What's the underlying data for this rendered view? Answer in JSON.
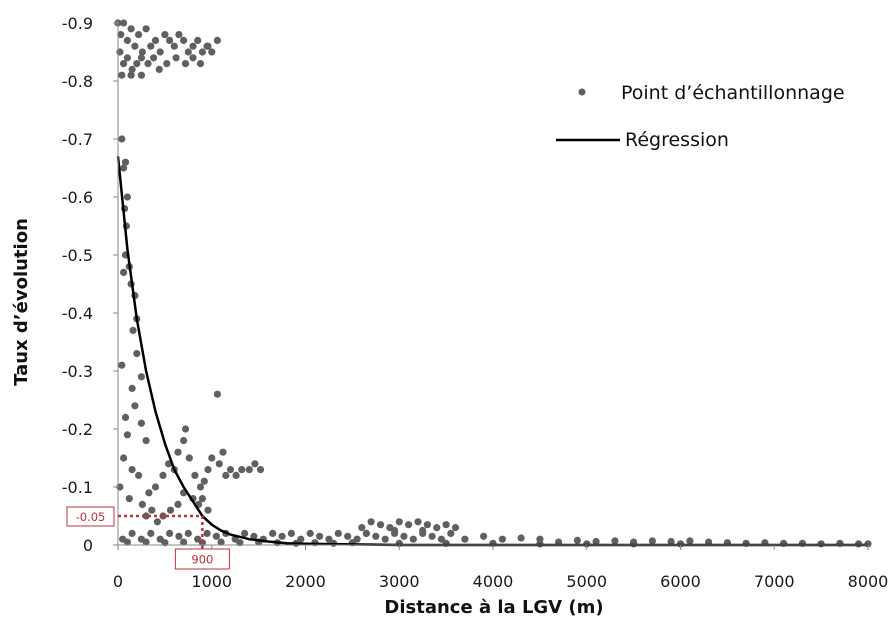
{
  "chart_data": {
    "type": "scatter",
    "xlabel": "Distance à la LGV (m)",
    "ylabel": "Taux d’évolution",
    "xlim": [
      0,
      8000
    ],
    "ylim": [
      -0.9,
      0
    ],
    "y_axis_inverted": true,
    "x_ticks": [
      0,
      1000,
      2000,
      3000,
      4000,
      5000,
      6000,
      7000,
      8000
    ],
    "y_ticks": [
      0,
      -0.1,
      -0.2,
      -0.3,
      -0.4,
      -0.5,
      -0.6,
      -0.7,
      -0.8,
      -0.9
    ],
    "x_tick_labels": [
      "0",
      "1000",
      "2000",
      "3000",
      "4000",
      "5000",
      "6000",
      "7000",
      "8000"
    ],
    "y_tick_labels": [
      "0",
      "-0.1",
      "-0.2",
      "-0.3",
      "-0.4",
      "-0.5",
      "-0.6",
      "-0.7",
      "-0.8",
      "-0.9"
    ],
    "grid": false,
    "legend_position": "top-right",
    "colors": {
      "points": "#606060",
      "regression": "#000000",
      "annotation": "#c0303a"
    },
    "series": [
      {
        "name": "Point d’échantillonnage",
        "kind": "scatter",
        "points": [
          [
            0,
            -0.9
          ],
          [
            30,
            -0.88
          ],
          [
            60,
            -0.9
          ],
          [
            100,
            -0.87
          ],
          [
            140,
            -0.89
          ],
          [
            180,
            -0.86
          ],
          [
            220,
            -0.88
          ],
          [
            260,
            -0.85
          ],
          [
            300,
            -0.89
          ],
          [
            350,
            -0.86
          ],
          [
            400,
            -0.87
          ],
          [
            450,
            -0.85
          ],
          [
            500,
            -0.88
          ],
          [
            550,
            -0.87
          ],
          [
            600,
            -0.86
          ],
          [
            650,
            -0.88
          ],
          [
            700,
            -0.87
          ],
          [
            750,
            -0.85
          ],
          [
            800,
            -0.86
          ],
          [
            850,
            -0.87
          ],
          [
            900,
            -0.85
          ],
          [
            950,
            -0.86
          ],
          [
            1000,
            -0.85
          ],
          [
            1060,
            -0.87
          ],
          [
            20,
            -0.85
          ],
          [
            60,
            -0.83
          ],
          [
            100,
            -0.84
          ],
          [
            150,
            -0.82
          ],
          [
            200,
            -0.83
          ],
          [
            250,
            -0.84
          ],
          [
            320,
            -0.83
          ],
          [
            380,
            -0.84
          ],
          [
            440,
            -0.82
          ],
          [
            520,
            -0.83
          ],
          [
            620,
            -0.84
          ],
          [
            720,
            -0.83
          ],
          [
            800,
            -0.84
          ],
          [
            880,
            -0.83
          ],
          [
            960,
            -0.86
          ],
          [
            40,
            -0.81
          ],
          [
            140,
            -0.81
          ],
          [
            250,
            -0.81
          ],
          [
            40,
            -0.7
          ],
          [
            60,
            -0.65
          ],
          [
            80,
            -0.66
          ],
          [
            100,
            -0.6
          ],
          [
            70,
            -0.58
          ],
          [
            90,
            -0.55
          ],
          [
            80,
            -0.5
          ],
          [
            60,
            -0.47
          ],
          [
            120,
            -0.48
          ],
          [
            140,
            -0.45
          ],
          [
            180,
            -0.43
          ],
          [
            200,
            -0.39
          ],
          [
            160,
            -0.37
          ],
          [
            40,
            -0.31
          ],
          [
            200,
            -0.33
          ],
          [
            150,
            -0.27
          ],
          [
            250,
            -0.29
          ],
          [
            80,
            -0.22
          ],
          [
            180,
            -0.24
          ],
          [
            250,
            -0.21
          ],
          [
            100,
            -0.19
          ],
          [
            300,
            -0.18
          ],
          [
            60,
            -0.15
          ],
          [
            150,
            -0.13
          ],
          [
            220,
            -0.12
          ],
          [
            20,
            -0.1
          ],
          [
            120,
            -0.08
          ],
          [
            260,
            -0.07
          ],
          [
            330,
            -0.09
          ],
          [
            400,
            -0.1
          ],
          [
            480,
            -0.12
          ],
          [
            540,
            -0.14
          ],
          [
            600,
            -0.13
          ],
          [
            640,
            -0.16
          ],
          [
            700,
            -0.18
          ],
          [
            720,
            -0.2
          ],
          [
            760,
            -0.15
          ],
          [
            820,
            -0.12
          ],
          [
            880,
            -0.1
          ],
          [
            920,
            -0.11
          ],
          [
            960,
            -0.13
          ],
          [
            1000,
            -0.15
          ],
          [
            1060,
            -0.26
          ],
          [
            1080,
            -0.14
          ],
          [
            1120,
            -0.16
          ],
          [
            1150,
            -0.12
          ],
          [
            1200,
            -0.13
          ],
          [
            1260,
            -0.12
          ],
          [
            1320,
            -0.13
          ],
          [
            1400,
            -0.13
          ],
          [
            1460,
            -0.14
          ],
          [
            1520,
            -0.13
          ],
          [
            800,
            -0.08
          ],
          [
            860,
            -0.07
          ],
          [
            900,
            -0.08
          ],
          [
            960,
            -0.06
          ],
          [
            700,
            -0.09
          ],
          [
            640,
            -0.07
          ],
          [
            560,
            -0.06
          ],
          [
            480,
            -0.05
          ],
          [
            420,
            -0.04
          ],
          [
            360,
            -0.06
          ],
          [
            300,
            -0.05
          ],
          [
            50,
            -0.01
          ],
          [
            150,
            -0.02
          ],
          [
            250,
            -0.01
          ],
          [
            350,
            -0.02
          ],
          [
            450,
            -0.01
          ],
          [
            550,
            -0.02
          ],
          [
            650,
            -0.015
          ],
          [
            750,
            -0.02
          ],
          [
            850,
            -0.01
          ],
          [
            950,
            -0.02
          ],
          [
            1050,
            -0.015
          ],
          [
            1150,
            -0.02
          ],
          [
            1250,
            -0.01
          ],
          [
            1350,
            -0.02
          ],
          [
            1450,
            -0.015
          ],
          [
            1550,
            -0.01
          ],
          [
            1650,
            -0.02
          ],
          [
            1750,
            -0.015
          ],
          [
            1850,
            -0.02
          ],
          [
            1950,
            -0.01
          ],
          [
            2050,
            -0.02
          ],
          [
            2150,
            -0.015
          ],
          [
            2250,
            -0.01
          ],
          [
            2350,
            -0.02
          ],
          [
            2450,
            -0.015
          ],
          [
            2550,
            -0.01
          ],
          [
            2650,
            -0.02
          ],
          [
            2750,
            -0.015
          ],
          [
            2850,
            -0.01
          ],
          [
            2950,
            -0.02
          ],
          [
            3050,
            -0.015
          ],
          [
            3150,
            -0.01
          ],
          [
            3250,
            -0.02
          ],
          [
            3350,
            -0.015
          ],
          [
            3450,
            -0.01
          ],
          [
            3550,
            -0.02
          ],
          [
            2600,
            -0.03
          ],
          [
            2700,
            -0.04
          ],
          [
            2800,
            -0.035
          ],
          [
            2900,
            -0.03
          ],
          [
            3000,
            -0.04
          ],
          [
            3100,
            -0.035
          ],
          [
            3200,
            -0.04
          ],
          [
            3300,
            -0.035
          ],
          [
            3400,
            -0.03
          ],
          [
            3500,
            -0.035
          ],
          [
            3600,
            -0.03
          ],
          [
            2650,
            -0.02
          ],
          [
            2950,
            -0.025
          ],
          [
            3250,
            -0.025
          ],
          [
            3700,
            -0.01
          ],
          [
            3900,
            -0.015
          ],
          [
            4100,
            -0.01
          ],
          [
            4300,
            -0.012
          ],
          [
            4500,
            -0.01
          ],
          [
            4700,
            -0.005
          ],
          [
            4900,
            -0.008
          ],
          [
            5100,
            -0.006
          ],
          [
            5300,
            -0.007
          ],
          [
            5500,
            -0.005
          ],
          [
            5700,
            -0.007
          ],
          [
            5900,
            -0.006
          ],
          [
            6100,
            -0.007
          ],
          [
            6300,
            -0.005
          ],
          [
            6500,
            -0.004
          ],
          [
            6700,
            -0.003
          ],
          [
            6900,
            -0.004
          ],
          [
            7100,
            -0.003
          ],
          [
            7300,
            -0.003
          ],
          [
            7500,
            -0.002
          ],
          [
            7700,
            -0.003
          ],
          [
            7900,
            -0.002
          ],
          [
            8000,
            -0.002
          ],
          [
            100,
            -0.005
          ],
          [
            300,
            -0.005
          ],
          [
            500,
            -0.004
          ],
          [
            700,
            -0.005
          ],
          [
            900,
            -0.004
          ],
          [
            1100,
            -0.005
          ],
          [
            1300,
            -0.004
          ],
          [
            1500,
            -0.005
          ],
          [
            1700,
            -0.004
          ],
          [
            1900,
            -0.003
          ],
          [
            2100,
            -0.004
          ],
          [
            2300,
            -0.003
          ],
          [
            2500,
            -0.004
          ],
          [
            3000,
            -0.003
          ],
          [
            3500,
            -0.003
          ],
          [
            4000,
            -0.003
          ],
          [
            4500,
            -0.002
          ],
          [
            5000,
            -0.002
          ],
          [
            5500,
            -0.002
          ],
          [
            6000,
            -0.002
          ]
        ]
      },
      {
        "name": "Régression",
        "kind": "line",
        "points": [
          [
            0,
            -0.67
          ],
          [
            100,
            -0.51
          ],
          [
            200,
            -0.39
          ],
          [
            300,
            -0.3
          ],
          [
            400,
            -0.23
          ],
          [
            500,
            -0.175
          ],
          [
            600,
            -0.13
          ],
          [
            700,
            -0.1
          ],
          [
            800,
            -0.075
          ],
          [
            900,
            -0.05
          ],
          [
            1000,
            -0.035
          ],
          [
            1100,
            -0.025
          ],
          [
            1200,
            -0.018
          ],
          [
            1400,
            -0.01
          ],
          [
            1600,
            -0.006
          ],
          [
            1800,
            -0.003
          ],
          [
            2000,
            -0.002
          ],
          [
            2500,
            -0.001
          ],
          [
            3000,
            0
          ],
          [
            4000,
            0
          ],
          [
            5000,
            0
          ],
          [
            6000,
            0
          ],
          [
            7000,
            0
          ],
          [
            8000,
            0
          ]
        ]
      }
    ],
    "annotations": [
      {
        "axis": "y",
        "value": -0.05,
        "label": "-0.05"
      },
      {
        "axis": "x",
        "value": 900,
        "label": "900"
      }
    ]
  }
}
